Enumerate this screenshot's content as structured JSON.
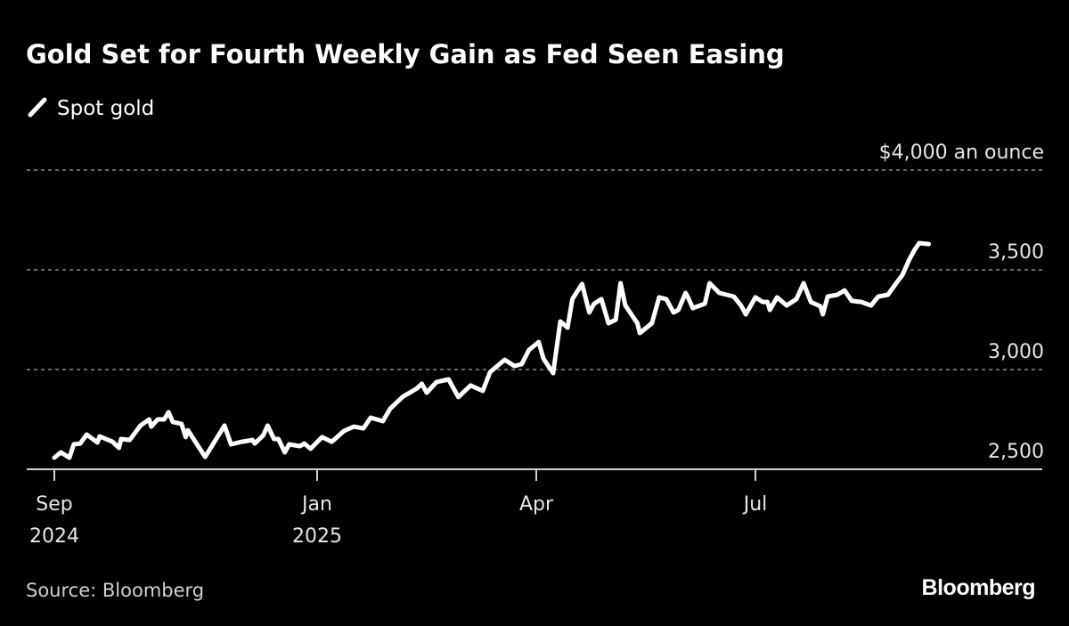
{
  "title": "Gold Set for Fourth Weekly Gain as Fed Seen Easing",
  "source": "Source: Bloomberg",
  "logo": "Bloomberg",
  "colors": {
    "background": "#000000",
    "line": "#ffffff",
    "grid": "#8a8a8a",
    "axis": "#d0d0d0"
  },
  "chart_data": {
    "type": "line",
    "title": "Gold Set for Fourth Weekly Gain as Fed Seen Easing",
    "ylabel": "",
    "y_unit_label": "$4,000 an ounce",
    "ylim": [
      2500,
      4000
    ],
    "y_ticks": [
      {
        "value": 2500,
        "label": "2,500"
      },
      {
        "value": 3000,
        "label": "3,000"
      },
      {
        "value": 3500,
        "label": "3,500"
      },
      {
        "value": 4000,
        "label": "$4,000 an ounce"
      }
    ],
    "x_ticks": [
      {
        "date": "2024-09-01",
        "month": "Sep",
        "year": "2024"
      },
      {
        "date": "2025-01-01",
        "month": "Jan",
        "year": "2025"
      },
      {
        "date": "2025-04-01",
        "month": "Apr",
        "year": ""
      },
      {
        "date": "2025-07-01",
        "month": "Jul",
        "year": ""
      }
    ],
    "grid": "horizontal dashed",
    "legend_position": "top-left",
    "series": [
      {
        "name": "Spot gold",
        "points": [
          [
            "2024-09-01",
            2558
          ],
          [
            "2024-09-04",
            2585
          ],
          [
            "2024-09-08",
            2558
          ],
          [
            "2024-09-10",
            2625
          ],
          [
            "2024-09-13",
            2629
          ],
          [
            "2024-09-16",
            2674
          ],
          [
            "2024-09-21",
            2634
          ],
          [
            "2024-09-22",
            2665
          ],
          [
            "2024-09-28",
            2638
          ],
          [
            "2024-10-01",
            2607
          ],
          [
            "2024-10-02",
            2652
          ],
          [
            "2024-10-06",
            2647
          ],
          [
            "2024-10-11",
            2719
          ],
          [
            "2024-10-15",
            2750
          ],
          [
            "2024-10-16",
            2714
          ],
          [
            "2024-10-19",
            2750
          ],
          [
            "2024-10-22",
            2750
          ],
          [
            "2024-10-24",
            2786
          ],
          [
            "2024-10-26",
            2737
          ],
          [
            "2024-10-30",
            2728
          ],
          [
            "2024-11-01",
            2661
          ],
          [
            "2024-11-02",
            2696
          ],
          [
            "2024-11-10",
            2562
          ],
          [
            "2024-11-19",
            2719
          ],
          [
            "2024-11-22",
            2625
          ],
          [
            "2024-11-27",
            2638
          ],
          [
            "2024-12-02",
            2647
          ],
          [
            "2024-12-03",
            2629
          ],
          [
            "2024-12-07",
            2670
          ],
          [
            "2024-12-09",
            2719
          ],
          [
            "2024-12-12",
            2652
          ],
          [
            "2024-12-14",
            2652
          ],
          [
            "2024-12-17",
            2585
          ],
          [
            "2024-12-19",
            2625
          ],
          [
            "2024-12-24",
            2616
          ],
          [
            "2024-12-26",
            2629
          ],
          [
            "2024-12-29",
            2603
          ],
          [
            "2025-01-03",
            2661
          ],
          [
            "2025-01-07",
            2638
          ],
          [
            "2025-01-12",
            2692
          ],
          [
            "2025-01-16",
            2714
          ],
          [
            "2025-01-20",
            2705
          ],
          [
            "2025-01-23",
            2759
          ],
          [
            "2025-01-28",
            2741
          ],
          [
            "2025-01-31",
            2804
          ],
          [
            "2025-02-05",
            2862
          ],
          [
            "2025-02-11",
            2906
          ],
          [
            "2025-02-13",
            2929
          ],
          [
            "2025-02-15",
            2884
          ],
          [
            "2025-02-19",
            2937
          ],
          [
            "2025-02-24",
            2951
          ],
          [
            "2025-02-28",
            2862
          ],
          [
            "2025-03-05",
            2920
          ],
          [
            "2025-03-10",
            2893
          ],
          [
            "2025-03-13",
            2987
          ],
          [
            "2025-03-19",
            3049
          ],
          [
            "2025-03-23",
            3018
          ],
          [
            "2025-03-26",
            3027
          ],
          [
            "2025-03-29",
            3098
          ],
          [
            "2025-04-02",
            3138
          ],
          [
            "2025-04-04",
            3054
          ],
          [
            "2025-04-08",
            2982
          ],
          [
            "2025-04-11",
            3241
          ],
          [
            "2025-04-14",
            3210
          ],
          [
            "2025-04-16",
            3353
          ],
          [
            "2025-04-20",
            3429
          ],
          [
            "2025-04-23",
            3286
          ],
          [
            "2025-04-25",
            3330
          ],
          [
            "2025-04-28",
            3353
          ],
          [
            "2025-05-01",
            3232
          ],
          [
            "2025-05-04",
            3250
          ],
          [
            "2025-05-06",
            3433
          ],
          [
            "2025-05-08",
            3321
          ],
          [
            "2025-05-13",
            3232
          ],
          [
            "2025-05-14",
            3183
          ],
          [
            "2025-05-19",
            3232
          ],
          [
            "2025-05-22",
            3362
          ],
          [
            "2025-05-25",
            3353
          ],
          [
            "2025-05-28",
            3286
          ],
          [
            "2025-05-30",
            3299
          ],
          [
            "2025-06-02",
            3384
          ],
          [
            "2025-06-03",
            3362
          ],
          [
            "2025-06-05",
            3308
          ],
          [
            "2025-06-10",
            3330
          ],
          [
            "2025-06-12",
            3433
          ],
          [
            "2025-06-16",
            3384
          ],
          [
            "2025-06-22",
            3366
          ],
          [
            "2025-06-25",
            3321
          ],
          [
            "2025-06-27",
            3277
          ],
          [
            "2025-07-01",
            3362
          ],
          [
            "2025-07-04",
            3339
          ],
          [
            "2025-07-06",
            3339
          ],
          [
            "2025-07-07",
            3299
          ],
          [
            "2025-07-10",
            3362
          ],
          [
            "2025-07-14",
            3321
          ],
          [
            "2025-07-18",
            3353
          ],
          [
            "2025-07-21",
            3433
          ],
          [
            "2025-07-24",
            3339
          ],
          [
            "2025-07-28",
            3317
          ],
          [
            "2025-07-29",
            3277
          ],
          [
            "2025-07-31",
            3366
          ],
          [
            "2025-08-04",
            3375
          ],
          [
            "2025-08-07",
            3397
          ],
          [
            "2025-08-10",
            3344
          ],
          [
            "2025-08-14",
            3339
          ],
          [
            "2025-08-18",
            3321
          ],
          [
            "2025-08-21",
            3366
          ],
          [
            "2025-08-25",
            3375
          ],
          [
            "2025-08-29",
            3442
          ],
          [
            "2025-08-31",
            3473
          ],
          [
            "2025-09-03",
            3554
          ],
          [
            "2025-09-05",
            3598
          ],
          [
            "2025-09-07",
            3634
          ],
          [
            "2025-09-11",
            3629
          ]
        ]
      }
    ]
  }
}
